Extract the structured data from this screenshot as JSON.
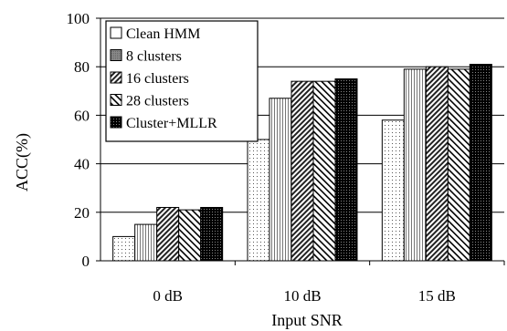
{
  "chart_data": {
    "type": "bar",
    "categories": [
      "0 dB",
      "10 dB",
      "15 dB"
    ],
    "series": [
      {
        "name": "Clean HMM",
        "values": [
          10,
          50,
          58
        ],
        "pattern": "pat-dots"
      },
      {
        "name": "8 clusters",
        "values": [
          15,
          67,
          79
        ],
        "pattern": "pat-vlines"
      },
      {
        "name": "16 clusters",
        "values": [
          22,
          74,
          80
        ],
        "pattern": "pat-dense-diag"
      },
      {
        "name": "28 clusters",
        "values": [
          21,
          74,
          79
        ],
        "pattern": "pat-diag"
      },
      {
        "name": "Cluster+MLLR",
        "values": [
          22,
          75,
          81
        ],
        "pattern": "pat-dark"
      }
    ],
    "legend_marker_patterns": [
      "pat-white",
      "pat-gray",
      "pat-dense-diag",
      "pat-diag",
      "pat-dark"
    ],
    "xlabel": "Input SNR",
    "ylabel": "ACC(%)",
    "ylim": [
      0,
      100
    ],
    "yticks": [
      "0",
      "20",
      "40",
      "60",
      "80",
      "100"
    ],
    "grid": true,
    "legend_position": "top-left"
  }
}
